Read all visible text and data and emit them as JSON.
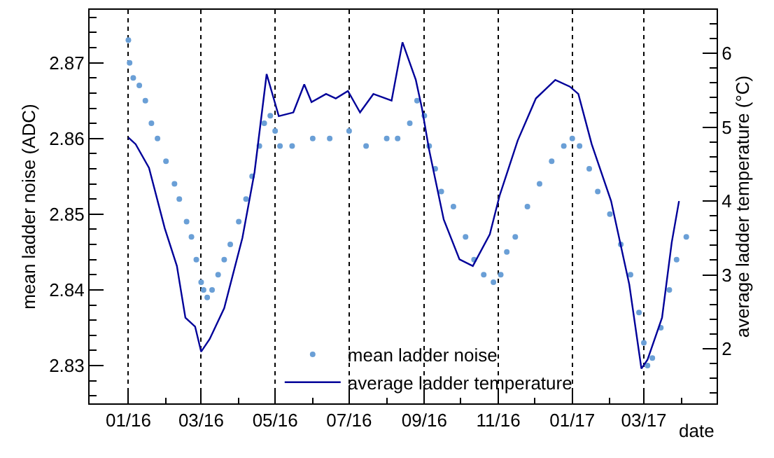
{
  "chart_data": {
    "type": "scatter",
    "xlabel": "date",
    "ylabel": "mean ladder noise (ADC)",
    "y2label": "average ladder temperature (°C)",
    "xlim": [
      "2015-11-30",
      "2017-04-30"
    ],
    "xticks": [
      {
        "value": "2016-01-01",
        "label": "01/16"
      },
      {
        "value": "2016-03-01",
        "label": "03/16"
      },
      {
        "value": "2016-05-01",
        "label": "05/16"
      },
      {
        "value": "2016-07-01",
        "label": "07/16"
      },
      {
        "value": "2016-09-01",
        "label": "09/16"
      },
      {
        "value": "2016-11-01",
        "label": "11/16"
      },
      {
        "value": "2017-01-01",
        "label": "01/17"
      },
      {
        "value": "2017-03-01",
        "label": "03/17"
      }
    ],
    "ylim": [
      2.825,
      2.877
    ],
    "yticks": [
      2.83,
      2.84,
      2.85,
      2.86,
      2.87
    ],
    "y2lim": [
      1.26,
      6.59
    ],
    "y2ticks": [
      2,
      3,
      4,
      5,
      6
    ],
    "grid": "x",
    "legend": "bottom",
    "series": [
      {
        "name": "mean ladder noise",
        "marker": "circle",
        "color": "#6a9fd6",
        "x": [
          "2016-01-01",
          "2016-01-02",
          "2016-01-05",
          "2016-01-10",
          "2016-01-15",
          "2016-01-20",
          "2016-01-25",
          "2016-02-01",
          "2016-02-08",
          "2016-02-12",
          "2016-02-18",
          "2016-02-22",
          "2016-02-26",
          "2016-03-01",
          "2016-03-03",
          "2016-03-06",
          "2016-03-10",
          "2016-03-15",
          "2016-03-20",
          "2016-03-25",
          "2016-04-01",
          "2016-04-07",
          "2016-04-12",
          "2016-04-18",
          "2016-04-22",
          "2016-04-27",
          "2016-05-01",
          "2016-05-05",
          "2016-05-15",
          "2016-06-01",
          "2016-06-15",
          "2016-07-01",
          "2016-07-15",
          "2016-08-01",
          "2016-08-10",
          "2016-08-20",
          "2016-08-26",
          "2016-09-01",
          "2016-09-05",
          "2016-09-10",
          "2016-09-15",
          "2016-09-25",
          "2016-10-05",
          "2016-10-12",
          "2016-10-20",
          "2016-10-28",
          "2016-11-03",
          "2016-11-08",
          "2016-11-15",
          "2016-11-25",
          "2016-12-05",
          "2016-12-15",
          "2016-12-25",
          "2017-01-01",
          "2017-01-07",
          "2017-01-15",
          "2017-01-22",
          "2017-02-01",
          "2017-02-10",
          "2017-02-18",
          "2017-02-25",
          "2017-03-01",
          "2017-03-04",
          "2017-03-08",
          "2017-03-15",
          "2017-03-22",
          "2017-03-28",
          "2017-04-05"
        ],
        "values": [
          2.873,
          2.87,
          2.868,
          2.867,
          2.865,
          2.862,
          2.86,
          2.857,
          2.854,
          2.852,
          2.849,
          2.847,
          2.844,
          2.841,
          2.84,
          2.839,
          2.84,
          2.842,
          2.844,
          2.846,
          2.849,
          2.852,
          2.855,
          2.859,
          2.862,
          2.863,
          2.861,
          2.859,
          2.859,
          2.86,
          2.86,
          2.861,
          2.859,
          2.86,
          2.86,
          2.862,
          2.865,
          2.863,
          2.859,
          2.856,
          2.853,
          2.851,
          2.847,
          2.844,
          2.842,
          2.841,
          2.842,
          2.845,
          2.847,
          2.851,
          2.854,
          2.857,
          2.859,
          2.86,
          2.859,
          2.856,
          2.853,
          2.85,
          2.846,
          2.842,
          2.837,
          2.833,
          2.83,
          2.831,
          2.835,
          2.84,
          2.844,
          2.847
        ]
      },
      {
        "name": "average ladder temperature",
        "type": "line",
        "axis": "y2",
        "marker": "none",
        "line_style": "solid",
        "color": "#000099",
        "x": [
          "2016-01-01",
          "2016-01-07",
          "2016-01-18",
          "2016-01-31",
          "2016-02-10",
          "2016-02-17",
          "2016-02-25",
          "2016-03-01",
          "2016-03-08",
          "2016-03-20",
          "2016-04-04",
          "2016-04-14",
          "2016-04-24",
          "2016-05-04",
          "2016-05-16",
          "2016-05-25",
          "2016-05-31",
          "2016-06-12",
          "2016-06-20",
          "2016-06-30",
          "2016-07-10",
          "2016-07-21",
          "2016-08-05",
          "2016-08-14",
          "2016-08-25",
          "2016-08-30",
          "2016-09-05",
          "2016-09-17",
          "2016-09-30",
          "2016-10-11",
          "2016-10-25",
          "2016-11-02",
          "2016-11-17",
          "2016-12-02",
          "2016-12-18",
          "2016-12-30",
          "2017-01-06",
          "2017-01-17",
          "2017-02-02",
          "2017-02-17",
          "2017-02-27",
          "2017-03-04",
          "2017-03-16",
          "2017-03-24",
          "2017-03-30"
        ],
        "values": [
          4.86,
          4.77,
          4.45,
          3.63,
          3.12,
          2.42,
          2.3,
          1.96,
          2.13,
          2.55,
          3.5,
          4.39,
          5.72,
          5.15,
          5.2,
          5.58,
          5.34,
          5.45,
          5.39,
          5.49,
          5.2,
          5.45,
          5.36,
          6.15,
          5.64,
          5.26,
          4.69,
          3.75,
          3.21,
          3.12,
          3.55,
          4.07,
          4.82,
          5.39,
          5.64,
          5.55,
          5.45,
          4.77,
          4.0,
          2.87,
          1.73,
          1.85,
          2.42,
          3.44,
          4.0
        ]
      }
    ]
  }
}
